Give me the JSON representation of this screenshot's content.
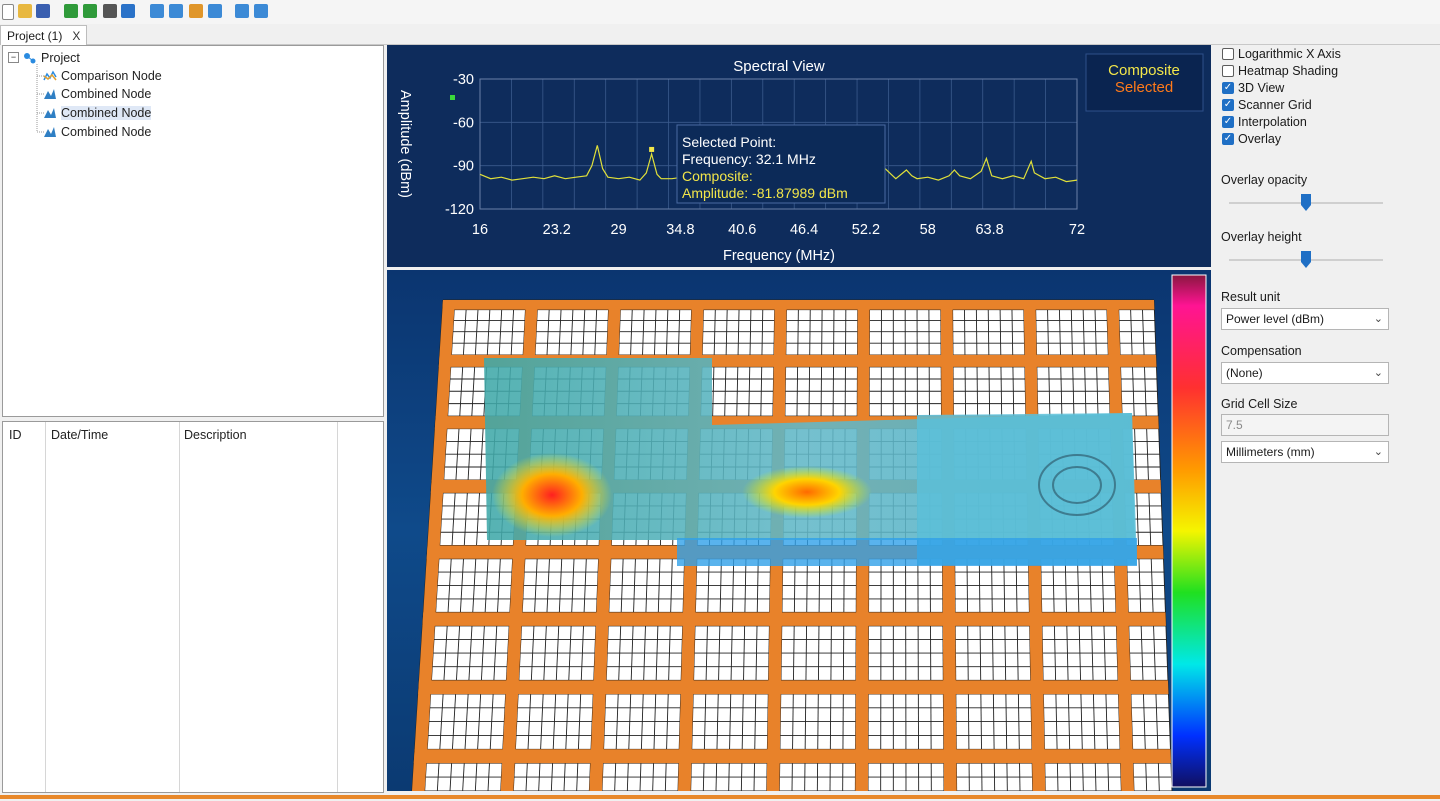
{
  "tab": {
    "title": "Project (1)",
    "close": "X"
  },
  "tree": {
    "root": "Project",
    "items": [
      {
        "label": "Comparison Node",
        "selected": false
      },
      {
        "label": "Combined Node",
        "selected": false
      },
      {
        "label": "Combined Node",
        "selected": true
      },
      {
        "label": "Combined Node",
        "selected": false
      }
    ]
  },
  "log": {
    "columns": [
      "ID",
      "Date/Time",
      "Description"
    ]
  },
  "spectral": {
    "title": "Spectral View",
    "legend": {
      "composite": "Composite",
      "selected": "Selected"
    },
    "tooltip": {
      "line1": "Selected Point:",
      "line2": "Frequency: 32.1 MHz",
      "line3": "Composite:",
      "line4": "Amplitude: -81.87989 dBm"
    },
    "colors": {
      "trace": "#e0e03a",
      "composite": "#f2e64a",
      "selected": "#ff7a1a"
    }
  },
  "chart_data": {
    "type": "line",
    "xlabel": "Frequency (MHz)",
    "ylabel": "Amplitude (dBm)",
    "xlim": [
      16,
      72
    ],
    "ylim": [
      -120,
      -30
    ],
    "x_ticks": [
      "16",
      "23.2",
      "29",
      "34.8",
      "40.6",
      "46.4",
      "52.2",
      "58",
      "63.8",
      "72"
    ],
    "y_ticks": [
      "-30",
      "-60",
      "-90",
      "-120"
    ],
    "series": [
      {
        "x": [
          16,
          17,
          18,
          19,
          20,
          21,
          22,
          23,
          24,
          25,
          26,
          26.5,
          27,
          27.5,
          28,
          29,
          30,
          31,
          31.6,
          32.1,
          32.6,
          33,
          34,
          35,
          36,
          37,
          38,
          39,
          40,
          41,
          42,
          43,
          44,
          45,
          46,
          47,
          48,
          49,
          50,
          51,
          52,
          53,
          53.5,
          54,
          55,
          56,
          56.5,
          57,
          58,
          59,
          60,
          60.5,
          61,
          62,
          63,
          63.5,
          64,
          65,
          66,
          67,
          67.7,
          68,
          69,
          70,
          71,
          72
        ],
        "y": [
          -96,
          -99,
          -98,
          -100,
          -99,
          -98,
          -99,
          -97,
          -99,
          -98,
          -97,
          -90,
          -76,
          -92,
          -98,
          -99,
          -98,
          -100,
          -95,
          -81.9,
          -96,
          -99,
          -99,
          -98,
          -100,
          -99,
          -98,
          -99,
          -97,
          -99,
          -98,
          -100,
          -99,
          -98,
          -99,
          -97,
          -99,
          -98,
          -100,
          -97,
          -99,
          -98,
          -77,
          -92,
          -99,
          -93,
          -97,
          -99,
          -98,
          -100,
          -97,
          -93,
          -97,
          -99,
          -94,
          -85,
          -97,
          -99,
          -97,
          -99,
          -87,
          -95,
          -99,
          -98,
          -101,
          -100
        ]
      }
    ],
    "selected_point": {
      "x": 32.1,
      "y": -81.87989
    }
  },
  "options": {
    "checkboxes": [
      {
        "label": "Logarithmic X Axis",
        "checked": false
      },
      {
        "label": "Heatmap Shading",
        "checked": false
      },
      {
        "label": "3D View",
        "checked": true
      },
      {
        "label": "Scanner Grid",
        "checked": true
      },
      {
        "label": "Interpolation",
        "checked": true
      },
      {
        "label": "Overlay",
        "checked": true
      }
    ],
    "overlay_opacity_label": "Overlay opacity",
    "overlay_opacity_value": 0.5,
    "overlay_height_label": "Overlay height",
    "overlay_height_value": 0.5,
    "result_unit_label": "Result unit",
    "result_unit_value": "Power level (dBm)",
    "compensation_label": "Compensation",
    "compensation_value": "(None)",
    "grid_cell_label": "Grid Cell Size",
    "grid_cell_value": "7.5",
    "grid_unit_value": "Millimeters (mm)"
  }
}
